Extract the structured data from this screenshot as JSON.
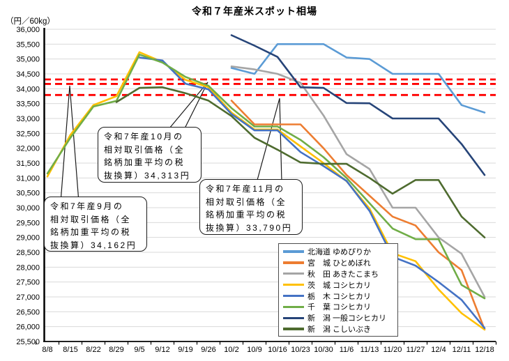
{
  "title": "令和７年産米スポット相場",
  "unit_label": "（円／60kg）",
  "annotations": [
    {
      "name": "september-callout",
      "lines": [
        "令和7年産9月の",
        "相対取引価格（全",
        "銘柄加重平均の税",
        "抜換算）34,162円"
      ]
    },
    {
      "name": "october-callout",
      "lines": [
        "令和7年産10月の",
        "相対取引価格（全",
        "銘柄加重平均の税",
        "抜換算）34,313円"
      ]
    },
    {
      "name": "november-callout",
      "lines": [
        "令和7年産11月の",
        "相対取引価格（全",
        "銘柄加重平均の税",
        "抜換算）33,790円"
      ]
    }
  ],
  "chart_data": {
    "type": "line",
    "title": "令和７年産米スポット相場",
    "ylabel": "（円／60kg）",
    "ylim": [
      25500,
      36000
    ],
    "ytick_step": 500,
    "grid": true,
    "legend_position": "inside-bottom-right",
    "reference_lines": [
      {
        "value": 34313,
        "color": "#FF0000",
        "style": "dashed",
        "meaning": "令和7年産10月の相対取引価格（全銘柄加重平均の税抜換算）34,313円"
      },
      {
        "value": 34162,
        "color": "#FF0000",
        "style": "dashed",
        "meaning": "令和7年産9月の相対取引価格（全銘柄加重平均の税抜換算）34,162円"
      },
      {
        "value": 33790,
        "color": "#FF0000",
        "style": "dashed",
        "meaning": "令和7年産11月の相対取引価格（全銘柄加重平均の税抜換算）33,790円"
      }
    ],
    "categories": [
      "8/8",
      "8/15",
      "8/22",
      "8/29",
      "9/5",
      "9/12",
      "9/19",
      "9/26",
      "10/2",
      "10/9",
      "10/16",
      "10/23",
      "10/30",
      "11/6",
      "11/13",
      "11/20",
      "11/27",
      "12/4",
      "12/11",
      "12/18"
    ],
    "series": [
      {
        "name": "北海道 ゆめぴりか",
        "color": "#5B9BD5",
        "values": [
          null,
          null,
          null,
          null,
          null,
          null,
          null,
          null,
          34700,
          34500,
          35500,
          35500,
          35500,
          35050,
          35000,
          34500,
          34500,
          34500,
          33450,
          33200
        ]
      },
      {
        "name": "宮　城 ひとめぼれ",
        "color": "#ED7D31",
        "values": [
          null,
          null,
          null,
          null,
          null,
          null,
          null,
          null,
          33600,
          32800,
          32800,
          32800,
          32000,
          31100,
          30400,
          29700,
          29400,
          28500,
          27900,
          25900
        ]
      },
      {
        "name": "秋　田 あきたこまち",
        "color": "#A5A5A5",
        "values": [
          null,
          null,
          null,
          null,
          null,
          null,
          null,
          null,
          34750,
          34650,
          34500,
          34200,
          33100,
          31800,
          31300,
          30000,
          30000,
          29000,
          28450,
          27000
        ]
      },
      {
        "name": "茨　城 コシヒカリ",
        "color": "#FFC000",
        "values": [
          31050,
          32450,
          33450,
          33750,
          35230,
          34900,
          34300,
          34050,
          33200,
          32630,
          32630,
          32060,
          31500,
          30890,
          29970,
          28470,
          28200,
          27250,
          26450,
          25900
        ]
      },
      {
        "name": "栃　木 コシヒカリ",
        "color": "#4472C4",
        "values": [
          null,
          null,
          null,
          null,
          35050,
          34950,
          34170,
          33980,
          33150,
          32600,
          32600,
          31870,
          31400,
          30900,
          29890,
          28350,
          28050,
          27500,
          26900,
          25950
        ]
      },
      {
        "name": "千　葉 コシヒカリ",
        "color": "#70AD47",
        "values": [
          31150,
          32350,
          33400,
          33590,
          35150,
          34880,
          34400,
          34100,
          33350,
          32730,
          32730,
          32280,
          31700,
          31000,
          30150,
          29300,
          28940,
          28940,
          27400,
          26950
        ]
      },
      {
        "name": "新　潟 一般コシヒカリ",
        "color": "#264478",
        "values": [
          null,
          null,
          null,
          null,
          null,
          null,
          null,
          null,
          35800,
          35450,
          35070,
          34050,
          34030,
          33520,
          33510,
          33000,
          33000,
          33000,
          32140,
          31100
        ]
      },
      {
        "name": "新　潟 こしいぶき",
        "color": "#4E6B2F",
        "values": [
          null,
          null,
          null,
          33550,
          34030,
          34050,
          33850,
          33600,
          33080,
          32350,
          31950,
          31520,
          31475,
          31475,
          31000,
          30470,
          30930,
          30930,
          29700,
          29000
        ]
      }
    ]
  }
}
